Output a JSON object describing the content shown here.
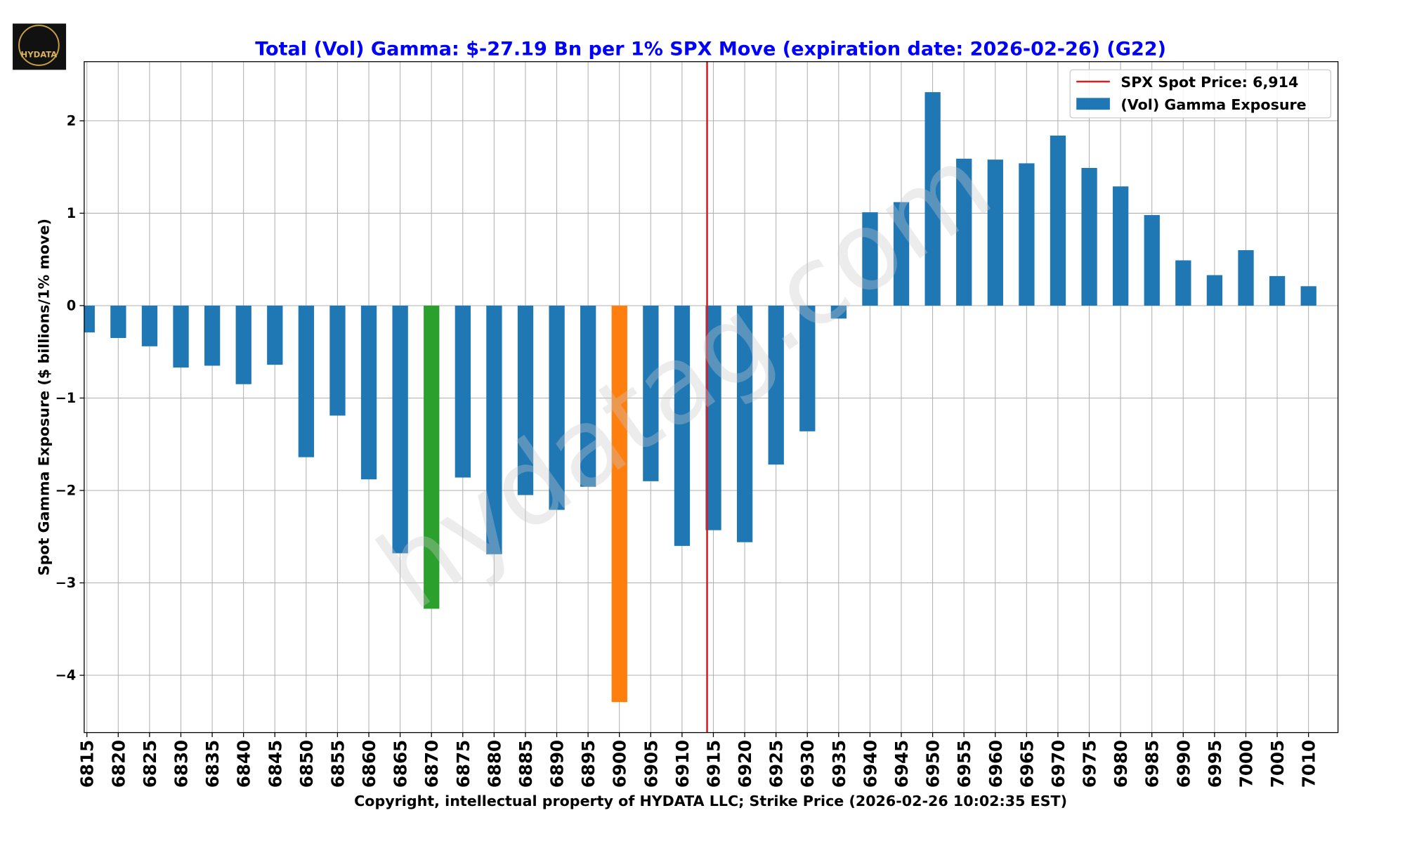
{
  "logo_text": "HYDATA",
  "watermark": "hydatag.com",
  "chart_data": {
    "type": "bar",
    "title": "Total (Vol) Gamma: $-27.19 Bn per 1% SPX Move (expiration date: 2026-02-26) (G22)",
    "ylabel": "Spot Gamma Exposure ($ billions/1% move)",
    "xlabel": "Copyright, intellectual property of HYDATA LLC; Strike Price (2026-02-26 10:02:35 EST)",
    "categories": [
      "6815",
      "6820",
      "6825",
      "6830",
      "6835",
      "6840",
      "6845",
      "6850",
      "6855",
      "6860",
      "6865",
      "6870",
      "6875",
      "6880",
      "6885",
      "6890",
      "6895",
      "6900",
      "6905",
      "6910",
      "6915",
      "6920",
      "6925",
      "6930",
      "6935",
      "6940",
      "6945",
      "6950",
      "6955",
      "6960",
      "6965",
      "6970",
      "6975",
      "6980",
      "6985",
      "6990",
      "6995",
      "7000",
      "7005",
      "7010"
    ],
    "series": [
      {
        "name": "(Vol) Gamma Exposure",
        "color": "#1f77b4",
        "values": [
          -0.29,
          -0.35,
          -0.44,
          -0.67,
          -0.65,
          -0.85,
          -0.64,
          -1.64,
          -1.19,
          -1.88,
          -2.68,
          -3.28,
          -1.86,
          -2.69,
          -2.05,
          -2.21,
          -1.96,
          -4.29,
          -1.9,
          -2.6,
          -2.43,
          -2.56,
          -1.72,
          -1.36,
          -0.14,
          1.01,
          1.12,
          2.31,
          1.59,
          1.58,
          1.54,
          1.84,
          1.49,
          1.29,
          0.98,
          0.49,
          0.33,
          0.6,
          0.32,
          0.21
        ],
        "bar_colors": [
          "#1f77b4",
          "#1f77b4",
          "#1f77b4",
          "#1f77b4",
          "#1f77b4",
          "#1f77b4",
          "#1f77b4",
          "#1f77b4",
          "#1f77b4",
          "#1f77b4",
          "#1f77b4",
          "#2ca02c",
          "#1f77b4",
          "#1f77b4",
          "#1f77b4",
          "#1f77b4",
          "#1f77b4",
          "#ff7f0e",
          "#1f77b4",
          "#1f77b4",
          "#1f77b4",
          "#1f77b4",
          "#1f77b4",
          "#1f77b4",
          "#1f77b4",
          "#1f77b4",
          "#1f77b4",
          "#1f77b4",
          "#1f77b4",
          "#1f77b4",
          "#1f77b4",
          "#1f77b4",
          "#1f77b4",
          "#1f77b4",
          "#1f77b4",
          "#1f77b4",
          "#1f77b4",
          "#1f77b4",
          "#1f77b4",
          "#1f77b4"
        ]
      }
    ],
    "spot": {
      "label": "SPX Spot Price: 6,914",
      "value": 6914,
      "color": "#e41a1c"
    },
    "ylim": [
      -4.62,
      2.64
    ],
    "yticks": [
      {
        "value": -4,
        "label": "−4"
      },
      {
        "value": -3,
        "label": "−3"
      },
      {
        "value": -2,
        "label": "−2"
      },
      {
        "value": -1,
        "label": "−1"
      },
      0,
      1,
      2
    ],
    "grid": true,
    "legend": "upper right"
  }
}
